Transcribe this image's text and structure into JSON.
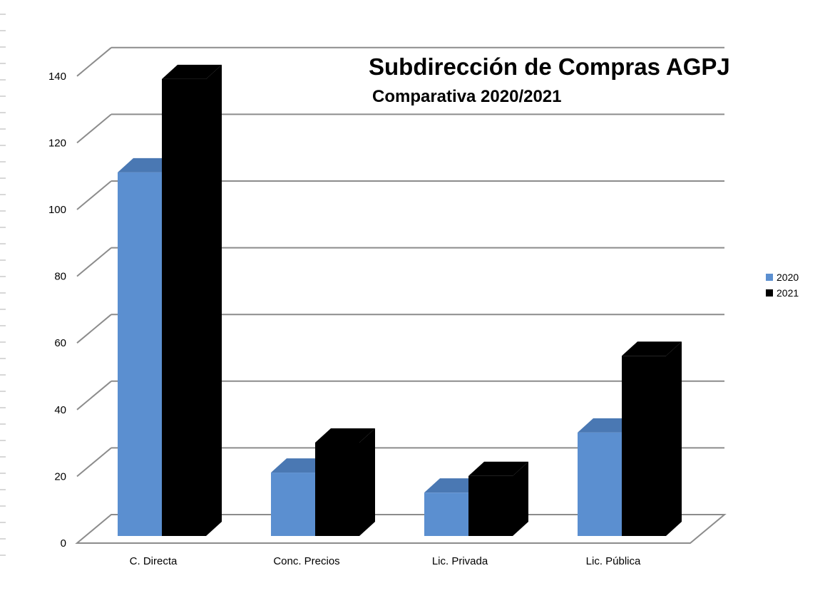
{
  "chart_data": {
    "type": "bar",
    "title": "Subdirección de Compras AGPJ",
    "subtitle": "Comparativa 2020/2021",
    "categories": [
      "C. Directa",
      "Conc. Precios",
      "Lic. Privada",
      "Lic. Pública"
    ],
    "series": [
      {
        "name": "2020",
        "values": [
          109,
          19,
          13,
          31
        ],
        "color": "#5b8fd0",
        "top_color": "#4a78b3"
      },
      {
        "name": "2021",
        "values": [
          137,
          28,
          18,
          54
        ],
        "color": "#000000",
        "top_color": "#000000"
      }
    ],
    "ylim": [
      0,
      140
    ],
    "yticks": [
      0,
      20,
      40,
      60,
      80,
      100,
      120,
      140
    ],
    "grid": true,
    "legend_position": "right",
    "three_d": true
  }
}
